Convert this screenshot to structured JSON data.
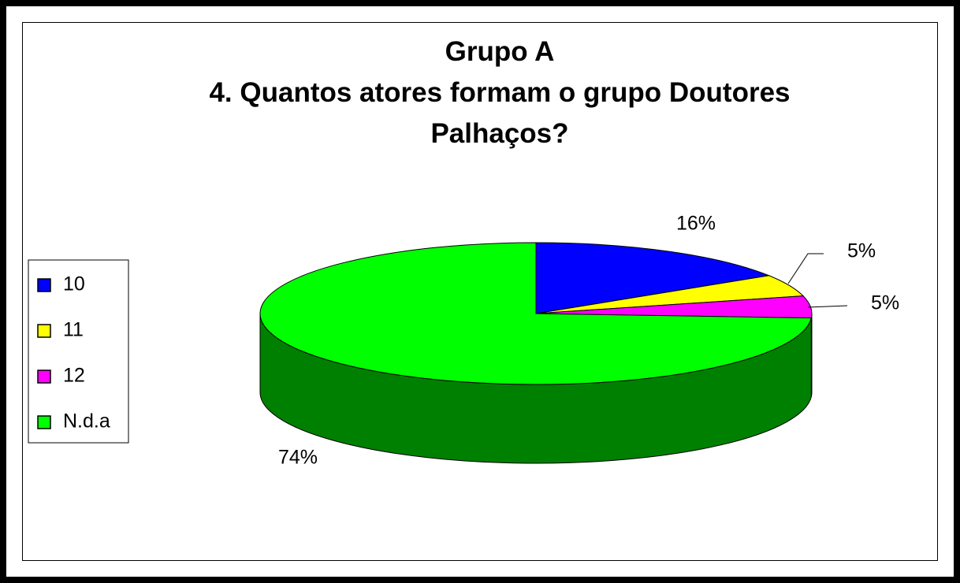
{
  "chart_data": {
    "type": "pie3d",
    "title": "Grupo A",
    "subtitle": "4. Quantos atores formam o grupo Doutores Palhaços?",
    "categories": [
      "10",
      "11",
      "12",
      "N.d.a"
    ],
    "values": [
      16,
      5,
      5,
      74
    ],
    "value_labels": [
      "16%",
      "5%",
      "5%",
      "74%"
    ],
    "colors": [
      "#0000ff",
      "#ffff00",
      "#ff00ff",
      "#00ff00"
    ],
    "side_colors": [
      "#000080",
      "#808000",
      "#800080",
      "#008000"
    ],
    "legend": "left"
  }
}
